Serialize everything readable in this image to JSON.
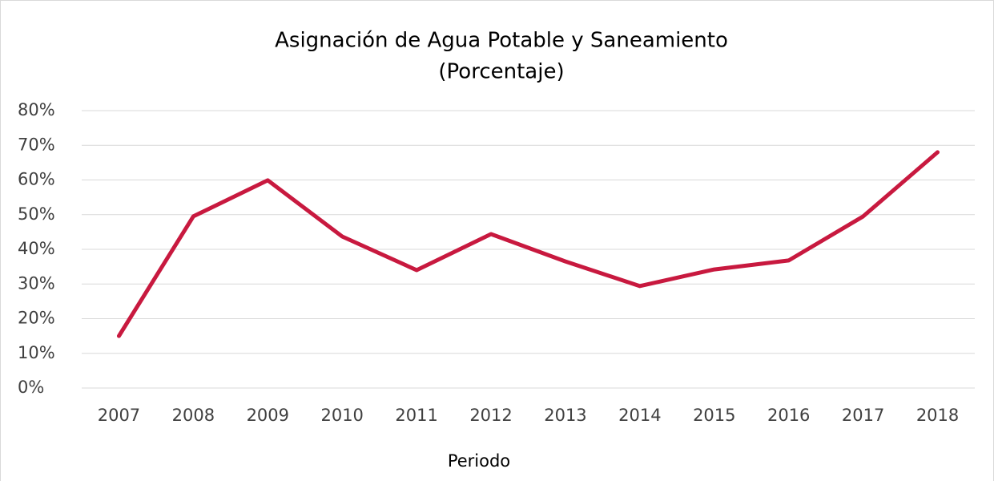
{
  "chart_data": {
    "type": "line",
    "title": "Asignación de Agua Potable y Saneamiento",
    "subtitle": "(Porcentaje)",
    "x_label": "Periodo",
    "categories": [
      "2007",
      "2008",
      "2009",
      "2010",
      "2011",
      "2012",
      "2013",
      "2014",
      "2015",
      "2016",
      "2017",
      "2018"
    ],
    "series": [
      {
        "name": "Asignación",
        "color": "#c8193f",
        "values": [
          15.0,
          49.5,
          59.9,
          43.7,
          34.0,
          44.4,
          36.5,
          29.4,
          34.2,
          36.8,
          49.5,
          68.0
        ]
      }
    ],
    "ylim": [
      0,
      80
    ],
    "yticks": [
      {
        "value": 0,
        "label": "0%"
      },
      {
        "value": 10,
        "label": "10%"
      },
      {
        "value": 20,
        "label": "20%"
      },
      {
        "value": 30,
        "label": "30%"
      },
      {
        "value": 40,
        "label": "40%"
      },
      {
        "value": 50,
        "label": "50%"
      },
      {
        "value": 60,
        "label": "60%"
      },
      {
        "value": 70,
        "label": "70%"
      },
      {
        "value": 80,
        "label": "80%"
      }
    ],
    "grid": true
  }
}
